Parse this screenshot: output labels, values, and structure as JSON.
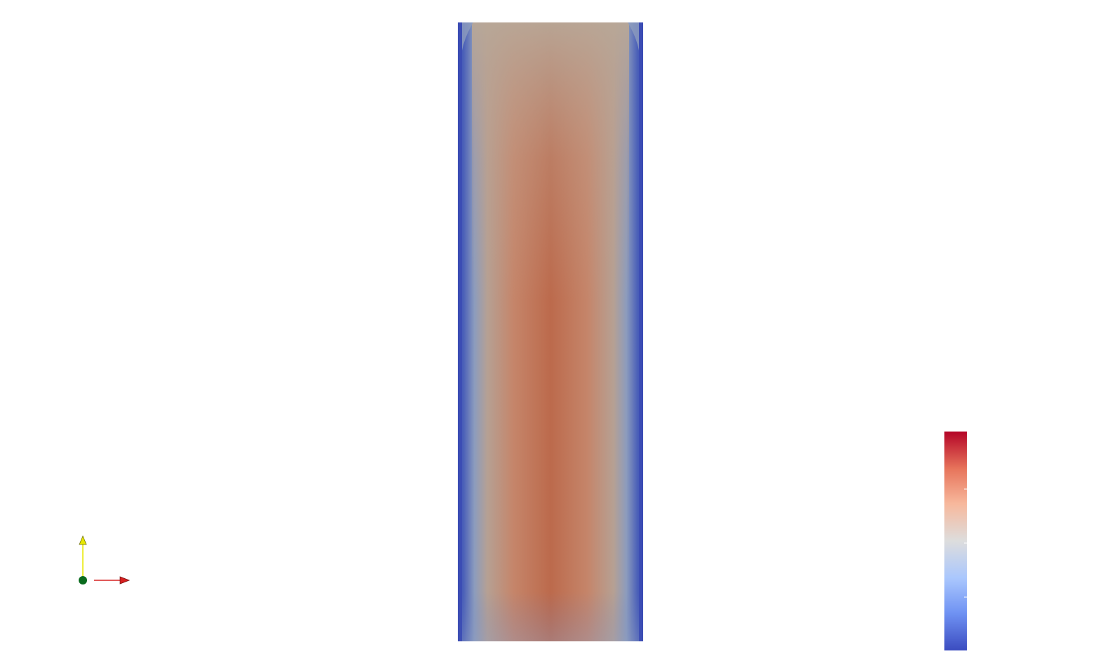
{
  "scene": {
    "background_color": "#ffffff",
    "colormap": "Cool to Warm",
    "colormap_stops": [
      "#3b4cc0",
      "#6f92f3",
      "#aac7fd",
      "#dddddd",
      "#f7b89c",
      "#e7745b",
      "#b40426"
    ],
    "colorbar_tick_count": 3
  },
  "field": {
    "edge_color": "#3a4fb5",
    "center_color": "#bb6b4e",
    "top_center_color": "#b6a395",
    "mid_color": "#b2a197"
  },
  "orientation_axes": {
    "x_axis_color": "#d62020",
    "y_axis_color": "#e8e800",
    "z_axis_color": "#0a6b1e"
  }
}
